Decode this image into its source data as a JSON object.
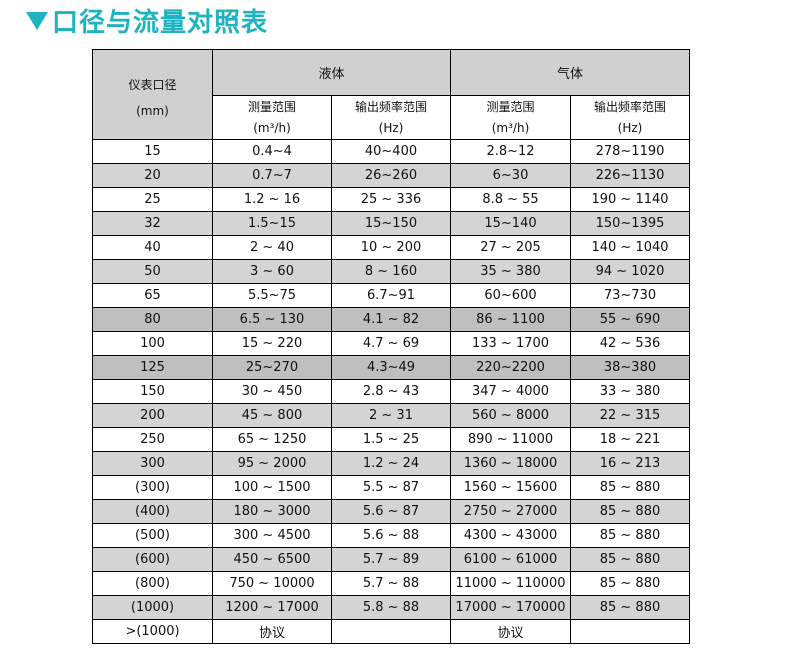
{
  "title": "口径与流量对照表",
  "colors": {
    "title": "#1fb3c2",
    "header_bg": "#d0d0d0",
    "row_light": "#d4d4d4",
    "row_dark": "#bfbfbf"
  },
  "header": {
    "diameter": "仪表口径",
    "diameter_unit": "(mm)",
    "liquid": "液体",
    "gas": "气体",
    "range": "测量范围",
    "range_unit": "(m³/h)",
    "freq": "输出频率范围",
    "freq_unit": "(Hz)"
  },
  "rows": [
    {
      "d": "15",
      "lr": "0.4~4",
      "lf": "40~400",
      "gr": "2.8~12",
      "gf": "278~1190",
      "shade": "none"
    },
    {
      "d": "20",
      "lr": "0.7~7",
      "lf": "26~260",
      "gr": "6~30",
      "gf": "226~1130",
      "shade": "light"
    },
    {
      "d": "25",
      "lr": "1.2 ~ 16",
      "lf": "25 ~ 336",
      "gr": "8.8 ~ 55",
      "gf": "190 ~ 1140",
      "shade": "none"
    },
    {
      "d": "32",
      "lr": "1.5~15",
      "lf": "15~150",
      "gr": "15~140",
      "gf": "150~1395",
      "shade": "light"
    },
    {
      "d": "40",
      "lr": "2 ~ 40",
      "lf": "10 ~ 200",
      "gr": "27 ~ 205",
      "gf": "140 ~ 1040",
      "shade": "none"
    },
    {
      "d": "50",
      "lr": "3 ~ 60",
      "lf": "8 ~ 160",
      "gr": "35 ~ 380",
      "gf": "94 ~ 1020",
      "shade": "light"
    },
    {
      "d": "65",
      "lr": "5.5~75",
      "lf": "6.7~91",
      "gr": "60~600",
      "gf": "73~730",
      "shade": "none"
    },
    {
      "d": "80",
      "lr": "6.5 ~ 130",
      "lf": "4.1 ~ 82",
      "gr": "86 ~ 1100",
      "gf": "55 ~ 690",
      "shade": "dark"
    },
    {
      "d": "100",
      "lr": "15 ~ 220",
      "lf": "4.7 ~ 69",
      "gr": "133 ~ 1700",
      "gf": "42 ~ 536",
      "shade": "none"
    },
    {
      "d": "125",
      "lr": "25~270",
      "lf": "4.3~49",
      "gr": "220~2200",
      "gf": "38~380",
      "shade": "dark"
    },
    {
      "d": "150",
      "lr": "30 ~ 450",
      "lf": "2.8 ~ 43",
      "gr": "347 ~ 4000",
      "gf": "33 ~ 380",
      "shade": "none"
    },
    {
      "d": "200",
      "lr": "45 ~ 800",
      "lf": "2 ~ 31",
      "gr": "560 ~ 8000",
      "gf": "22 ~ 315",
      "shade": "light"
    },
    {
      "d": "250",
      "lr": "65 ~ 1250",
      "lf": "1.5 ~ 25",
      "gr": "890 ~ 11000",
      "gf": "18 ~ 221",
      "shade": "none"
    },
    {
      "d": "300",
      "lr": "95 ~ 2000",
      "lf": "1.2 ~ 24",
      "gr": "1360 ~ 18000",
      "gf": "16 ~ 213",
      "shade": "light"
    },
    {
      "d": "(300)",
      "lr": "100 ~ 1500",
      "lf": "5.5 ~ 87",
      "gr": "1560 ~ 15600",
      "gf": "85 ~ 880",
      "shade": "none"
    },
    {
      "d": "(400)",
      "lr": "180 ~ 3000",
      "lf": "5.6 ~ 87",
      "gr": "2750 ~ 27000",
      "gf": "85 ~ 880",
      "shade": "light"
    },
    {
      "d": "(500)",
      "lr": "300 ~ 4500",
      "lf": "5.6 ~ 88",
      "gr": "4300 ~ 43000",
      "gf": "85 ~ 880",
      "shade": "none"
    },
    {
      "d": "(600)",
      "lr": "450 ~ 6500",
      "lf": "5.7 ~ 89",
      "gr": "6100 ~ 61000",
      "gf": "85 ~ 880",
      "shade": "light"
    },
    {
      "d": "(800)",
      "lr": "750 ~ 10000",
      "lf": "5.7 ~ 88",
      "gr": "11000 ~ 110000",
      "gf": "85 ~ 880",
      "shade": "none"
    },
    {
      "d": "(1000)",
      "lr": "1200 ~ 17000",
      "lf": "5.8 ~ 88",
      "gr": "17000 ~ 170000",
      "gf": "85 ~ 880",
      "shade": "light"
    },
    {
      "d": ">(1000)",
      "lr": "协议",
      "lf": "",
      "gr": "协议",
      "gf": "",
      "shade": "none"
    }
  ]
}
